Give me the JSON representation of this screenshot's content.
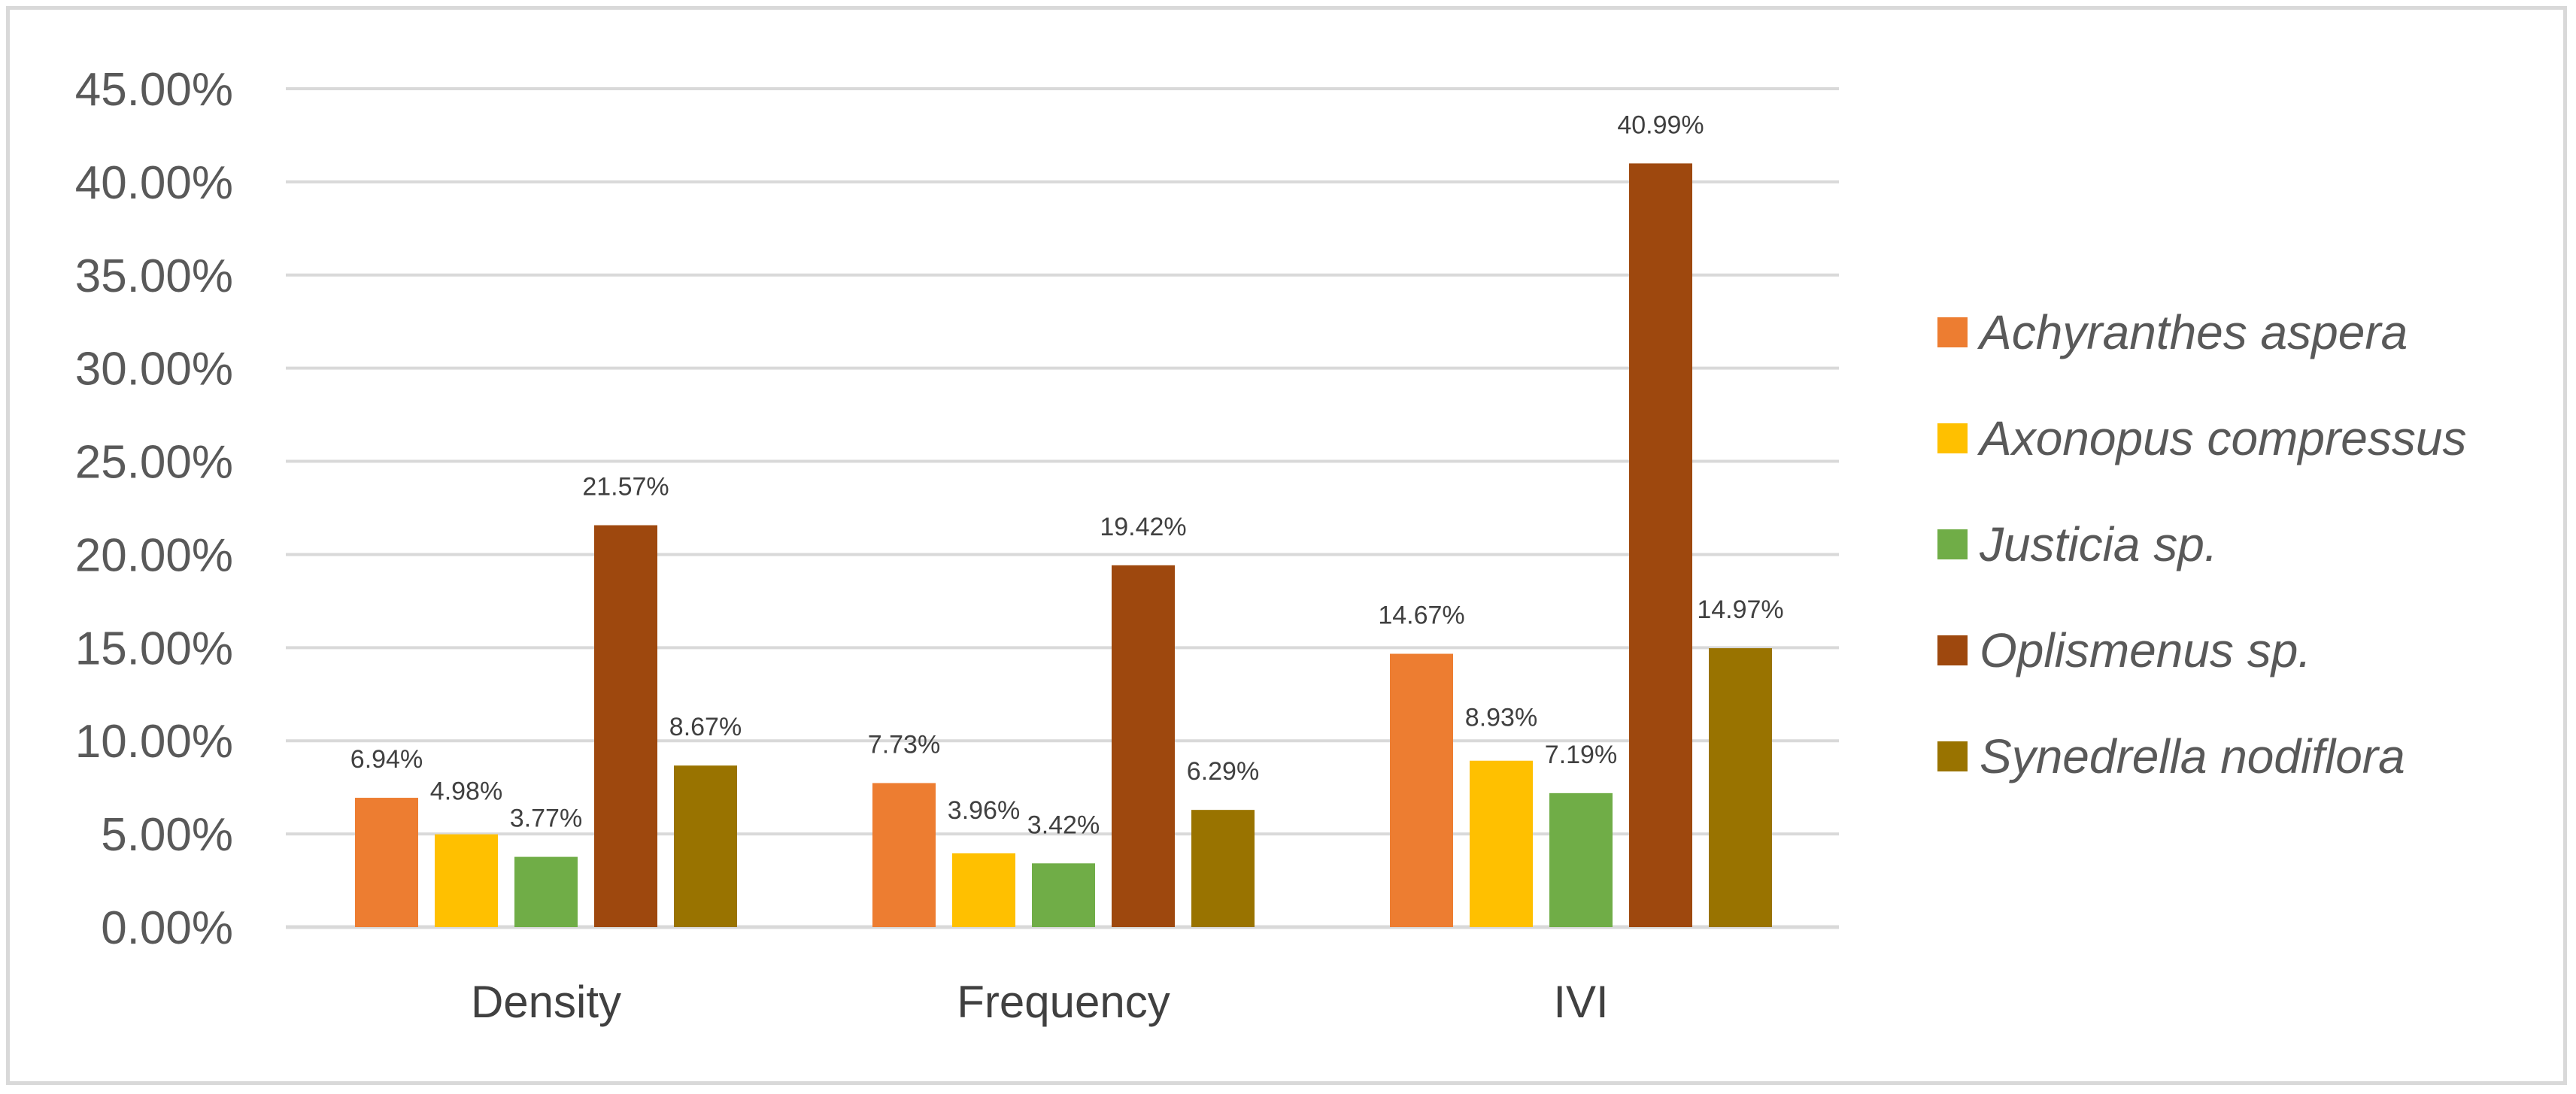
{
  "chart_data": {
    "type": "bar",
    "title": "",
    "xlabel": "",
    "ylabel": "",
    "categories": [
      "Density",
      "Frequency",
      "IVI"
    ],
    "ylim": [
      0,
      45
    ],
    "yticks": [
      "0.00%",
      "5.00%",
      "10.00%",
      "15.00%",
      "20.00%",
      "25.00%",
      "30.00%",
      "35.00%",
      "40.00%",
      "45.00%"
    ],
    "grid": true,
    "legend_position": "right",
    "series": [
      {
        "name": "Achyranthes aspera",
        "color": "#ED7D31",
        "values": [
          6.94,
          7.73,
          14.67
        ],
        "labels": [
          "6.94%",
          "7.73%",
          "14.67%"
        ]
      },
      {
        "name": "Axonopus compressus",
        "color": "#FFC000",
        "values": [
          4.98,
          3.96,
          8.93
        ],
        "labels": [
          "4.98%",
          "3.96%",
          "8.93%"
        ]
      },
      {
        "name": "Justicia sp.",
        "color": "#70AD47",
        "values": [
          3.77,
          3.42,
          7.19
        ],
        "labels": [
          "3.77%",
          "3.42%",
          "7.19%"
        ]
      },
      {
        "name": "Oplismenus sp.",
        "color": "#9E480E",
        "values": [
          21.57,
          19.42,
          40.99
        ],
        "labels": [
          "21.57%",
          "19.42%",
          "40.99%"
        ]
      },
      {
        "name": "Synedrella nodiflora",
        "color": "#997300",
        "values": [
          8.67,
          6.29,
          14.97
        ],
        "labels": [
          "8.67%",
          "6.29%",
          "14.97%"
        ]
      }
    ]
  }
}
